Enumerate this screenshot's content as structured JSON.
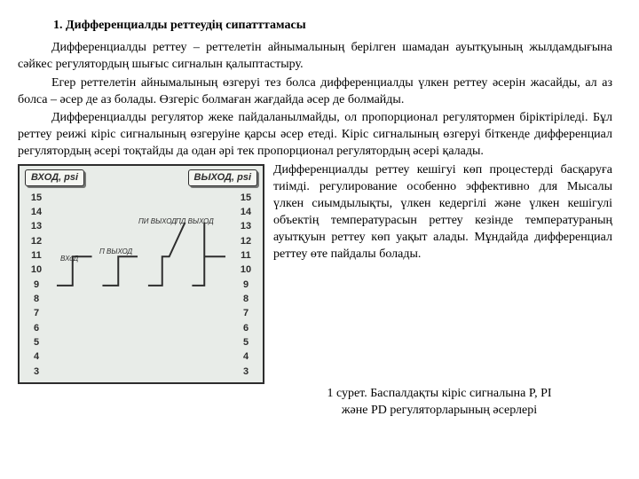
{
  "heading": "1.  Дифференциалды реттеудің сипатттамасы",
  "p1": "Дифференциалды реттеу – реттелетін айнымалының берілген шамадан ауытқуының жылдамдығына сәйкес регулятордың шығыс сигналын қалыптастыру.",
  "p2": "Егер реттелетін айнымалының өзгеруі тез болса дифференциалды үлкен реттеу әсерін жасайды, ал аз болса –  әсер де аз болады. Өзгеріс болмаған жағдайда әсер де болмайды.",
  "p3": "Дифференциалды регулятор жеке пайдаланылмайды, ол пропорционал регулятормен біріктіріледі. Бұл реттеу реижі кіріс сигналының өзгеруіне қарсы әсер етеді. Кіріс сигналының өзгеруі біткенде дифференциал регулятордың әсері тоқтайды да одан әрі тек пропорционал регулятордың әсері қалады.",
  "p4": "Дифференциалды реттеу кешігуі көп процестерді басқаруға тиімді. регулирование особенно эффективно для Мысалы үлкен сиымдылықты, үлкен кедергілі және үлкен кешігулі объектің температурасын реттеу кезінде температураның ауытқуын реттеу көп уақыт алады. Мұндайда дифференциал реттеу өте пайдалы болады.",
  "caption1": "1 сурет. Баспалдақты кіріс сигналына P, PI",
  "caption2": "және PD регуляторларының әсерлері",
  "figure": {
    "in_label": "ВХОД, psi",
    "out_label": "ВЫХОД, psi",
    "scale": [
      "15",
      "14",
      "13",
      "12",
      "11",
      "10",
      "9",
      "8",
      "7",
      "6",
      "5",
      "4",
      "3"
    ],
    "trace_labels": {
      "l1": "ВХоД",
      "l2": "П ВЫХОД",
      "l3": "ПИ ВЫХОД",
      "l4": "ПД ВЫХОД"
    },
    "colors": {
      "frame": "#2d2d2d",
      "bg": "#e8ece8",
      "stroke": "#2d2d2d"
    }
  }
}
